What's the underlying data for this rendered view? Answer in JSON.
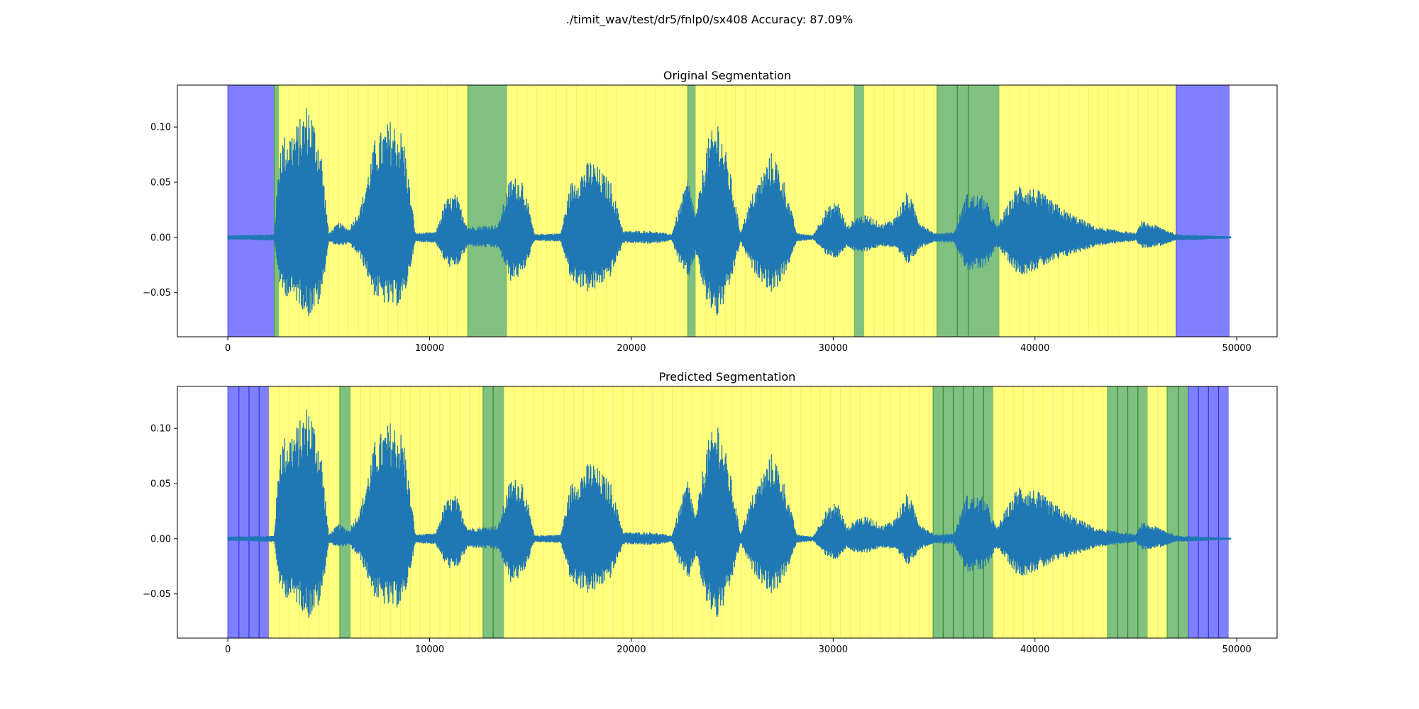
{
  "figure": {
    "title": "./timit_wav/test/dr5/fnlp0/sx408        Accuracy: 87.09%",
    "colors": {
      "waveform": "#1f77b4",
      "silence": "#8080ff",
      "voiced": "#80c080",
      "unvoiced": "#ffff80"
    }
  },
  "chart_data": [
    {
      "type": "area",
      "title": "Original Segmentation",
      "xlim": [
        -2500,
        52000
      ],
      "ylim": [
        -0.09,
        0.138
      ],
      "xticks": [
        0,
        10000,
        20000,
        30000,
        40000,
        50000
      ],
      "yticks": [
        -0.05,
        0.0,
        0.05,
        0.1
      ],
      "ytick_labels": [
        "−0.05",
        "0.00",
        "0.05",
        "0.10"
      ],
      "grid": false,
      "segments": [
        {
          "start": 0,
          "end": 2300,
          "label": "silence"
        },
        {
          "start": 2300,
          "end": 2550,
          "label": "voiced"
        },
        {
          "start": 2550,
          "end": 11900,
          "label": "unvoiced"
        },
        {
          "start": 11900,
          "end": 13850,
          "label": "voiced"
        },
        {
          "start": 13850,
          "end": 22800,
          "label": "unvoiced"
        },
        {
          "start": 22800,
          "end": 23200,
          "label": "voiced"
        },
        {
          "start": 23200,
          "end": 31050,
          "label": "unvoiced"
        },
        {
          "start": 31050,
          "end": 31550,
          "label": "voiced"
        },
        {
          "start": 31550,
          "end": 35150,
          "label": "unvoiced"
        },
        {
          "start": 35150,
          "end": 38250,
          "label": "voiced"
        },
        {
          "start": 38250,
          "end": 47000,
          "label": "unvoiced"
        },
        {
          "start": 47000,
          "end": 49650,
          "label": "silence"
        }
      ],
      "segment_dividers": [
        36150,
        36700
      ],
      "frame_step": 490
    },
    {
      "type": "area",
      "title": "Predicted Segmentation",
      "xlim": [
        -2500,
        52000
      ],
      "ylim": [
        -0.09,
        0.138
      ],
      "xticks": [
        0,
        10000,
        20000,
        30000,
        40000,
        50000
      ],
      "yticks": [
        -0.05,
        0.0,
        0.05,
        0.1
      ],
      "ytick_labels": [
        "−0.05",
        "0.00",
        "0.05",
        "0.10"
      ],
      "grid": false,
      "segments": [
        {
          "start": 0,
          "end": 2050,
          "label": "silence"
        },
        {
          "start": 2050,
          "end": 5550,
          "label": "unvoiced"
        },
        {
          "start": 5550,
          "end": 6100,
          "label": "voiced"
        },
        {
          "start": 6100,
          "end": 12650,
          "label": "unvoiced"
        },
        {
          "start": 12650,
          "end": 13700,
          "label": "voiced"
        },
        {
          "start": 13700,
          "end": 34950,
          "label": "unvoiced"
        },
        {
          "start": 34950,
          "end": 37950,
          "label": "voiced"
        },
        {
          "start": 37950,
          "end": 43600,
          "label": "unvoiced"
        },
        {
          "start": 43600,
          "end": 45600,
          "label": "voiced"
        },
        {
          "start": 45600,
          "end": 46550,
          "label": "unvoiced"
        },
        {
          "start": 46550,
          "end": 47600,
          "label": "voiced"
        },
        {
          "start": 47600,
          "end": 49600,
          "label": "silence"
        }
      ],
      "segment_dividers": [
        550,
        1050,
        1550,
        13150,
        35450,
        35950,
        36450,
        36950,
        37450,
        44100,
        44600,
        45100,
        47100,
        48100,
        48600,
        49100
      ],
      "frame_step": 490
    }
  ],
  "waveform": {
    "duration": 49700,
    "envelope": [
      [
        0,
        0.002,
        -0.002
      ],
      [
        2300,
        0.003,
        -0.003
      ],
      [
        2600,
        0.09,
        -0.05
      ],
      [
        3500,
        0.105,
        -0.06
      ],
      [
        4000,
        0.125,
        -0.073
      ],
      [
        4600,
        0.085,
        -0.06
      ],
      [
        5000,
        0.004,
        -0.004
      ],
      [
        5500,
        0.014,
        -0.008
      ],
      [
        6000,
        0.008,
        -0.006
      ],
      [
        6600,
        0.03,
        -0.02
      ],
      [
        7300,
        0.09,
        -0.055
      ],
      [
        8100,
        0.108,
        -0.065
      ],
      [
        8700,
        0.095,
        -0.06
      ],
      [
        9300,
        0.004,
        -0.004
      ],
      [
        10300,
        0.005,
        -0.005
      ],
      [
        10800,
        0.035,
        -0.025
      ],
      [
        11300,
        0.04,
        -0.03
      ],
      [
        11900,
        0.01,
        -0.008
      ],
      [
        13400,
        0.012,
        -0.01
      ],
      [
        14000,
        0.055,
        -0.04
      ],
      [
        14600,
        0.055,
        -0.035
      ],
      [
        15200,
        0.003,
        -0.003
      ],
      [
        16500,
        0.004,
        -0.004
      ],
      [
        17000,
        0.05,
        -0.04
      ],
      [
        18000,
        0.072,
        -0.052
      ],
      [
        19000,
        0.05,
        -0.035
      ],
      [
        19600,
        0.006,
        -0.005
      ],
      [
        21000,
        0.006,
        -0.006
      ],
      [
        22000,
        0.003,
        -0.003
      ],
      [
        22400,
        0.03,
        -0.025
      ],
      [
        22800,
        0.055,
        -0.04
      ],
      [
        23200,
        0.02,
        -0.015
      ],
      [
        23700,
        0.085,
        -0.06
      ],
      [
        24300,
        0.11,
        -0.075
      ],
      [
        24900,
        0.06,
        -0.045
      ],
      [
        25400,
        0.005,
        -0.004
      ],
      [
        26000,
        0.04,
        -0.03
      ],
      [
        27000,
        0.08,
        -0.052
      ],
      [
        27600,
        0.05,
        -0.035
      ],
      [
        28200,
        0.004,
        -0.004
      ],
      [
        29000,
        0.002,
        -0.002
      ],
      [
        29600,
        0.025,
        -0.015
      ],
      [
        30200,
        0.035,
        -0.02
      ],
      [
        30700,
        0.01,
        -0.008
      ],
      [
        31200,
        0.02,
        -0.015
      ],
      [
        31800,
        0.02,
        -0.012
      ],
      [
        32400,
        0.012,
        -0.008
      ],
      [
        33000,
        0.018,
        -0.01
      ],
      [
        33700,
        0.043,
        -0.025
      ],
      [
        34300,
        0.015,
        -0.01
      ],
      [
        35000,
        0.004,
        -0.004
      ],
      [
        36000,
        0.005,
        -0.005
      ],
      [
        36600,
        0.04,
        -0.03
      ],
      [
        37500,
        0.038,
        -0.03
      ],
      [
        38100,
        0.01,
        -0.008
      ],
      [
        39200,
        0.05,
        -0.035
      ],
      [
        40000,
        0.045,
        -0.03
      ],
      [
        41500,
        0.025,
        -0.018
      ],
      [
        43000,
        0.01,
        -0.008
      ],
      [
        45000,
        0.004,
        -0.003
      ],
      [
        45300,
        0.015,
        -0.01
      ],
      [
        46200,
        0.01,
        -0.008
      ],
      [
        47000,
        0.003,
        -0.003
      ],
      [
        49700,
        0.001,
        -0.001
      ]
    ]
  }
}
